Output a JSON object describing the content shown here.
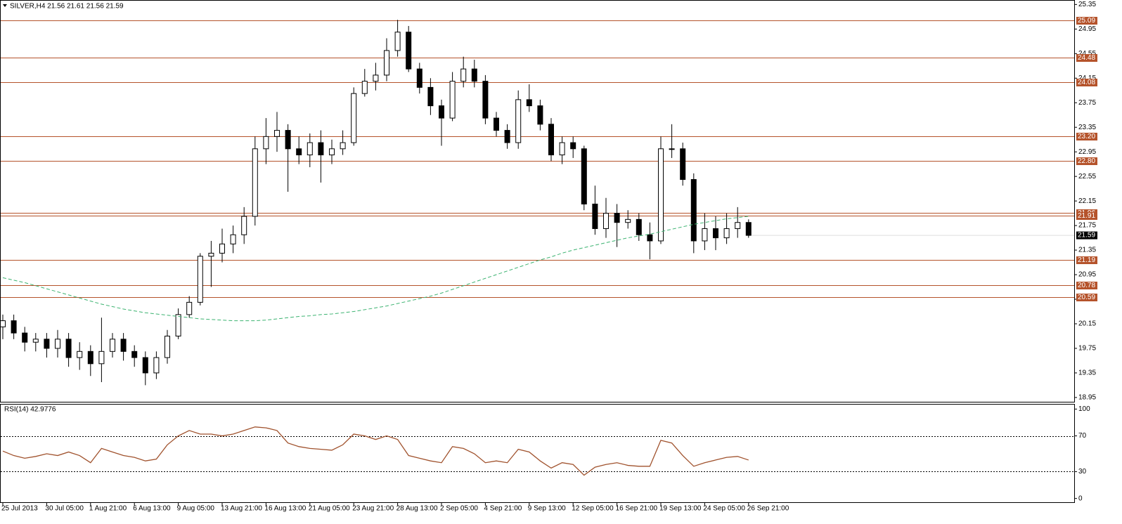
{
  "chart_data": [
    {
      "type": "candlestick",
      "title": "SILVER,H4  21.56 21.61 21.56 21.59",
      "categories": [
        "25 Jul 2013",
        null,
        null,
        null,
        "30 Jul 05:00",
        null,
        null,
        null,
        "1 Aug 21:00",
        null,
        null,
        null,
        "6 Aug 13:00",
        null,
        null,
        null,
        "9 Aug 05:00",
        null,
        null,
        null,
        "13 Aug 21:00",
        null,
        null,
        null,
        "16 Aug 13:00",
        null,
        null,
        null,
        "21 Aug 05:00",
        null,
        null,
        null,
        "23 Aug 21:00",
        null,
        null,
        null,
        "28 Aug 13:00",
        null,
        null,
        null,
        "2 Sep 05:00",
        null,
        null,
        null,
        "4 Sep 21:00",
        null,
        null,
        null,
        "9 Sep 13:00",
        null,
        null,
        null,
        "12 Sep 05:00",
        null,
        null,
        null,
        "16 Sep 21:00",
        null,
        null,
        null,
        "19 Sep 13:00",
        null,
        null,
        null,
        "24 Sep 05:00",
        null,
        null,
        null,
        "26 Sep 21:00"
      ],
      "open": [
        20.1,
        20.2,
        20.0,
        19.85,
        19.9,
        19.75,
        19.9,
        19.6,
        19.7,
        19.5,
        19.7,
        19.9,
        19.7,
        19.6,
        19.35,
        19.6,
        19.95,
        20.3,
        20.5,
        21.25,
        21.3,
        21.45,
        21.6,
        21.9,
        23.0,
        23.2,
        23.3,
        23.0,
        22.9,
        23.1,
        22.9,
        23.0,
        23.1,
        23.9,
        24.1,
        24.2,
        24.6,
        24.9,
        24.3,
        24.0,
        23.7,
        23.5,
        24.1,
        24.3,
        24.1,
        23.5,
        23.3,
        23.1,
        23.8,
        23.7,
        23.4,
        22.9,
        23.1,
        23.0,
        22.1,
        21.7,
        21.95,
        21.8,
        21.85,
        21.6,
        21.5,
        23.0,
        23.0,
        22.5,
        21.5,
        21.7,
        21.55,
        21.7,
        21.8
      ],
      "high": [
        20.3,
        20.3,
        20.1,
        20.0,
        20.0,
        20.05,
        20.0,
        19.85,
        19.8,
        20.25,
        20.0,
        20.0,
        19.8,
        19.7,
        19.7,
        20.05,
        20.4,
        20.6,
        21.3,
        21.5,
        21.7,
        21.75,
        22.05,
        23.2,
        23.5,
        23.6,
        23.4,
        23.2,
        23.25,
        23.3,
        23.15,
        23.3,
        24.0,
        24.3,
        24.4,
        24.8,
        25.1,
        25.0,
        24.4,
        24.15,
        23.8,
        24.25,
        24.5,
        24.45,
        24.2,
        23.6,
        23.4,
        23.95,
        24.05,
        23.8,
        23.5,
        23.2,
        23.2,
        23.05,
        22.4,
        22.2,
        22.1,
        22.0,
        21.95,
        21.8,
        23.2,
        23.4,
        23.1,
        22.6,
        21.95,
        21.9,
        21.95,
        22.05,
        21.85
      ],
      "low": [
        19.9,
        19.9,
        19.7,
        19.7,
        19.6,
        19.6,
        19.45,
        19.4,
        19.3,
        19.2,
        19.6,
        19.55,
        19.45,
        19.15,
        19.25,
        19.5,
        19.9,
        20.25,
        20.45,
        20.75,
        21.15,
        21.3,
        21.45,
        21.75,
        22.75,
        22.95,
        22.3,
        22.75,
        22.7,
        22.45,
        22.75,
        22.9,
        23.05,
        23.85,
        23.95,
        24.1,
        24.5,
        24.25,
        23.9,
        23.55,
        23.05,
        23.45,
        24.0,
        24.0,
        23.4,
        23.2,
        23.0,
        23.0,
        23.6,
        23.3,
        22.8,
        22.75,
        22.85,
        22.0,
        21.6,
        21.55,
        21.4,
        21.7,
        21.5,
        21.2,
        21.45,
        22.85,
        22.4,
        21.3,
        21.35,
        21.35,
        21.45,
        21.55,
        21.55
      ],
      "close": [
        20.2,
        20.0,
        19.85,
        19.9,
        19.75,
        19.9,
        19.6,
        19.7,
        19.5,
        19.7,
        19.9,
        19.7,
        19.6,
        19.35,
        19.6,
        19.95,
        20.3,
        20.5,
        21.25,
        21.3,
        21.45,
        21.6,
        21.9,
        23.0,
        23.2,
        23.3,
        23.0,
        22.9,
        23.1,
        22.9,
        23.0,
        23.1,
        23.9,
        24.1,
        24.2,
        24.6,
        24.9,
        24.3,
        24.0,
        23.7,
        23.5,
        24.1,
        24.3,
        24.1,
        23.5,
        23.3,
        23.1,
        23.8,
        23.7,
        23.4,
        22.9,
        23.1,
        23.0,
        22.1,
        21.7,
        21.95,
        21.8,
        21.85,
        21.6,
        21.5,
        23.0,
        23.0,
        22.5,
        21.5,
        21.7,
        21.55,
        21.7,
        21.8,
        21.59
      ],
      "color": "#000000",
      "ma": {
        "color": "#3cb371",
        "values": [
          20.9,
          20.86,
          20.82,
          20.77,
          20.72,
          20.67,
          20.62,
          20.57,
          20.52,
          20.47,
          20.43,
          20.39,
          20.36,
          20.33,
          20.31,
          20.29,
          20.27,
          20.25,
          20.23,
          20.22,
          20.21,
          20.2,
          20.2,
          20.2,
          20.21,
          20.23,
          20.25,
          20.27,
          20.28,
          20.3,
          20.31,
          20.33,
          20.35,
          20.38,
          20.41,
          20.44,
          20.48,
          20.52,
          20.56,
          20.6,
          20.65,
          20.71,
          20.77,
          20.83,
          20.89,
          20.95,
          21.01,
          21.07,
          21.13,
          21.19,
          21.24,
          21.3,
          21.35,
          21.39,
          21.43,
          21.47,
          21.51,
          21.55,
          21.58,
          21.61,
          21.65,
          21.69,
          21.73,
          21.77,
          21.8,
          21.83,
          21.86,
          21.88,
          21.9
        ]
      },
      "levels": [
        25.09,
        24.48,
        24.08,
        {
          "value": 23.2,
          "label": "23.20"
        },
        {
          "value": 22.8,
          "label": "22.80"
        },
        21.96,
        21.91,
        21.19,
        20.78,
        20.59
      ],
      "level_color": "#b5532b",
      "ylim": [
        18.88,
        25.4
      ],
      "yticks": [
        25.35,
        24.95,
        24.55,
        24.15,
        23.75,
        23.35,
        22.95,
        22.55,
        22.15,
        21.75,
        21.35,
        20.95,
        20.55,
        20.15,
        19.75,
        19.35,
        18.95
      ]
    },
    {
      "type": "line",
      "title": "RSI(14) 42.9776",
      "values": [
        53,
        48,
        45,
        47,
        50,
        48,
        52,
        48,
        40,
        56,
        52,
        48,
        46,
        42,
        44,
        60,
        70,
        76,
        72,
        72,
        70,
        72,
        76,
        80,
        79,
        76,
        62,
        58,
        56,
        55,
        54,
        60,
        72,
        70,
        66,
        70,
        66,
        48,
        45,
        42,
        40,
        58,
        56,
        50,
        40,
        42,
        40,
        55,
        52,
        42,
        34,
        40,
        38,
        26,
        35,
        38,
        40,
        37,
        36,
        36,
        65,
        62,
        48,
        36,
        40,
        43,
        46,
        47,
        42.98
      ],
      "color": "#a0522d",
      "levels": [
        70,
        30
      ],
      "ylim": [
        -5,
        105
      ],
      "yticks": [
        100,
        70,
        30,
        0
      ]
    }
  ]
}
